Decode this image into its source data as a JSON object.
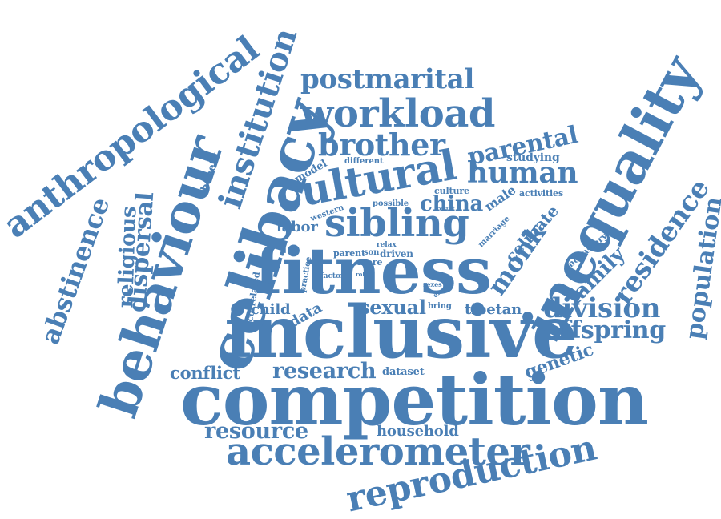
{
  "word_color": "#4a7fb5",
  "background_color": "#ffffff",
  "words": [
    "competition",
    "inclusive",
    "fitness",
    "celibacy",
    "behaviour",
    "inequality",
    "cultural",
    "anthropological",
    "sibling",
    "accelerometer",
    "reproduction",
    "workload",
    "postmarital",
    "brother",
    "institution",
    "human",
    "abstinence",
    "religious",
    "dispersal",
    "population",
    "residence",
    "division",
    "offspring",
    "research",
    "resource",
    "parental",
    "monk",
    "sexual",
    "china",
    "conflict",
    "household",
    "family",
    "genetic",
    "celibate",
    "labor",
    "child",
    "tibetan",
    "data",
    "dataset",
    "studying",
    "male",
    "monastery",
    "culture",
    "activities",
    "benefit",
    "model",
    "different",
    "western",
    "possible",
    "marriage",
    "parent",
    "son",
    "relax",
    "more",
    "driven",
    "correlated",
    "practice",
    "factor",
    "role",
    "sexes",
    "energy",
    "bring",
    "result"
  ]
}
